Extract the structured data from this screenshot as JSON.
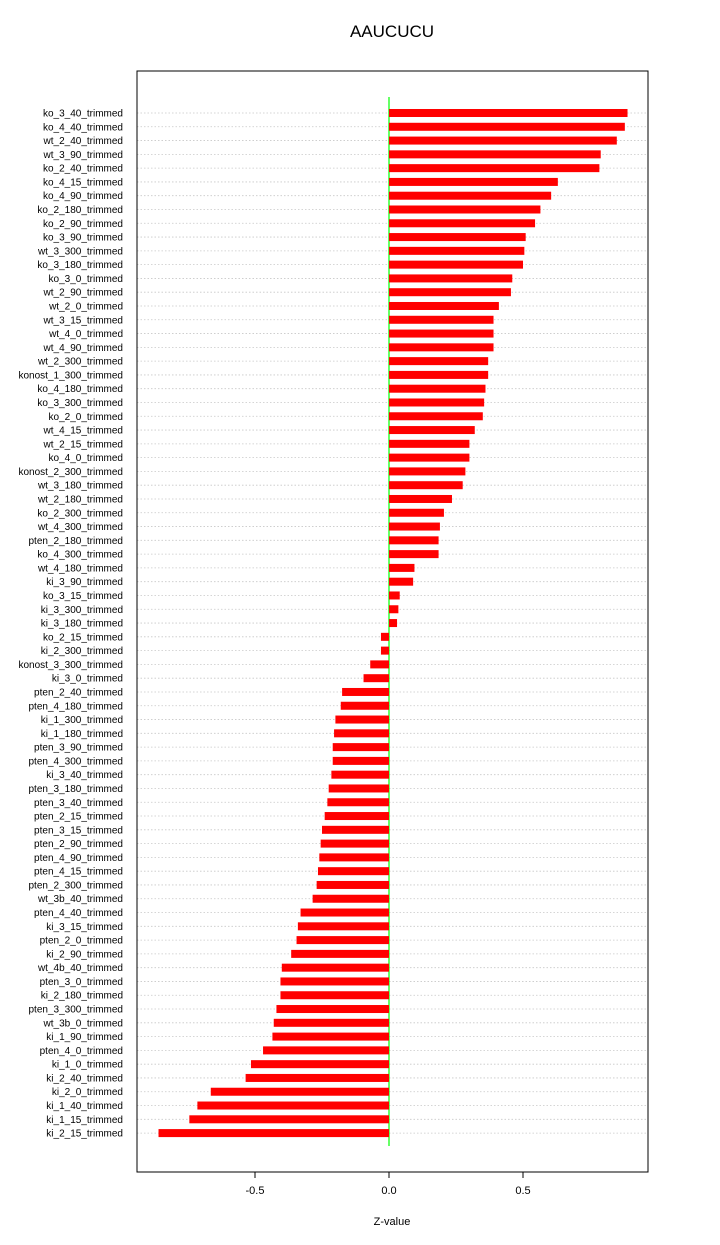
{
  "chart_data": {
    "type": "bar",
    "orientation": "horizontal",
    "title": "AAUCUCU",
    "xlabel": "Z-value",
    "ylabel": "",
    "xlim": [
      -0.99,
      0.96
    ],
    "xticks": [
      -0.5,
      0.0,
      0.5
    ],
    "xtick_labels": [
      "-0.5",
      "0.0",
      "0.5"
    ],
    "grid": "horizontal dotted",
    "legend": "none",
    "bar_color": "#ff0000",
    "zero_line_color": "#00ff00",
    "categories": [
      "ko_3_40_trimmed",
      "ko_4_40_trimmed",
      "wt_2_40_trimmed",
      "wt_3_90_trimmed",
      "ko_2_40_trimmed",
      "ko_4_15_trimmed",
      "ko_4_90_trimmed",
      "ko_2_180_trimmed",
      "ko_2_90_trimmed",
      "ko_3_90_trimmed",
      "wt_3_300_trimmed",
      "ko_3_180_trimmed",
      "ko_3_0_trimmed",
      "wt_2_90_trimmed",
      "wt_2_0_trimmed",
      "wt_3_15_trimmed",
      "wt_4_0_trimmed",
      "wt_4_90_trimmed",
      "wt_2_300_trimmed",
      "konost_1_300_trimmed",
      "ko_4_180_trimmed",
      "ko_3_300_trimmed",
      "ko_2_0_trimmed",
      "wt_4_15_trimmed",
      "wt_2_15_trimmed",
      "ko_4_0_trimmed",
      "konost_2_300_trimmed",
      "wt_3_180_trimmed",
      "wt_2_180_trimmed",
      "ko_2_300_trimmed",
      "wt_4_300_trimmed",
      "pten_2_180_trimmed",
      "ko_4_300_trimmed",
      "wt_4_180_trimmed",
      "ki_3_90_trimmed",
      "ko_3_15_trimmed",
      "ki_3_300_trimmed",
      "ki_3_180_trimmed",
      "ko_2_15_trimmed",
      "ki_2_300_trimmed",
      "konost_3_300_trimmed",
      "ki_3_0_trimmed",
      "pten_2_40_trimmed",
      "pten_4_180_trimmed",
      "ki_1_300_trimmed",
      "ki_1_180_trimmed",
      "pten_3_90_trimmed",
      "pten_4_300_trimmed",
      "ki_3_40_trimmed",
      "pten_3_180_trimmed",
      "pten_3_40_trimmed",
      "pten_2_15_trimmed",
      "pten_3_15_trimmed",
      "pten_2_90_trimmed",
      "pten_4_90_trimmed",
      "pten_4_15_trimmed",
      "pten_2_300_trimmed",
      "wt_3b_40_trimmed",
      "pten_4_40_trimmed",
      "ki_3_15_trimmed",
      "pten_2_0_trimmed",
      "ki_2_90_trimmed",
      "wt_4b_40_trimmed",
      "pten_3_0_trimmed",
      "ki_2_180_trimmed",
      "pten_3_300_trimmed",
      "wt_3b_0_trimmed",
      "ki_1_90_trimmed",
      "pten_4_0_trimmed",
      "ki_1_0_trimmed",
      "ki_2_40_trimmed",
      "ki_2_0_trimmed",
      "ki_1_40_trimmed",
      "ki_1_15_trimmed",
      "ki_2_15_trimmed"
    ],
    "values": [
      0.89,
      0.88,
      0.85,
      0.79,
      0.785,
      0.63,
      0.605,
      0.565,
      0.545,
      0.51,
      0.505,
      0.5,
      0.46,
      0.455,
      0.41,
      0.39,
      0.39,
      0.39,
      0.37,
      0.37,
      0.36,
      0.355,
      0.35,
      0.32,
      0.3,
      0.3,
      0.285,
      0.275,
      0.235,
      0.205,
      0.19,
      0.185,
      0.185,
      0.095,
      0.09,
      0.04,
      0.035,
      0.03,
      -0.03,
      -0.03,
      -0.07,
      -0.095,
      -0.175,
      -0.18,
      -0.2,
      -0.205,
      -0.21,
      -0.21,
      -0.215,
      -0.225,
      -0.23,
      -0.24,
      -0.25,
      -0.255,
      -0.26,
      -0.265,
      -0.27,
      -0.285,
      -0.33,
      -0.34,
      -0.345,
      -0.365,
      -0.4,
      -0.405,
      -0.405,
      -0.42,
      -0.43,
      -0.435,
      -0.47,
      -0.515,
      -0.535,
      -0.665,
      -0.715,
      -0.745,
      -0.86
    ]
  }
}
